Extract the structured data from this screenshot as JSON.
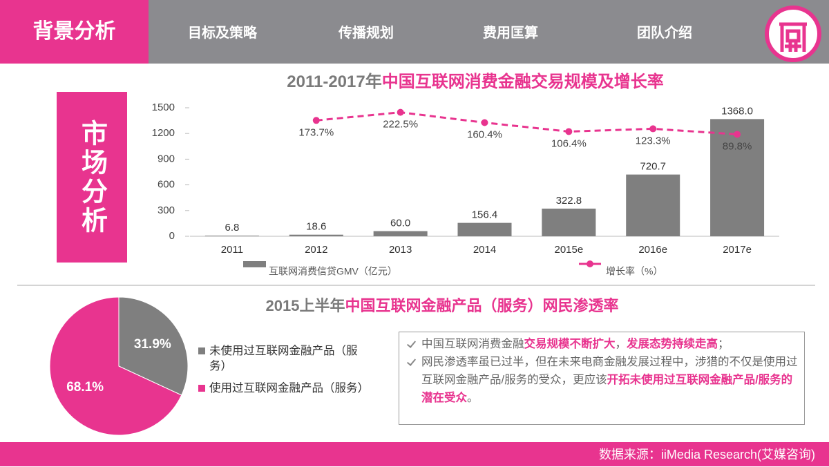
{
  "nav": {
    "active": "背景分析",
    "items": [
      "目标及策略",
      "传播规划",
      "费用匡算",
      "团队介绍"
    ]
  },
  "side_label": "市场分析",
  "chart_data": [
    {
      "type": "combo",
      "title": [
        "2011-2017年",
        "中国互联网消费金融交易规模及增长率"
      ],
      "categories": [
        "2011",
        "2012",
        "2013",
        "2014",
        "2015e",
        "2016e",
        "2017e"
      ],
      "series": [
        {
          "name": "互联网消费信贷GMV（亿元）",
          "type": "bar",
          "color": "#7f7f7f",
          "values": [
            6.8,
            18.6,
            60,
            156.4,
            322.8,
            720.7,
            1368
          ],
          "value_labels": [
            "6.8",
            "18.6",
            "60.0",
            "156.4",
            "322.8",
            "720.7",
            "1368.0"
          ]
        },
        {
          "name": "增长率（%）",
          "type": "line",
          "axis": "y2",
          "color": "#e8348f",
          "values": [
            null,
            173.7,
            222.5,
            160.4,
            106.4,
            123.3,
            89.8
          ],
          "value_labels": [
            null,
            "173.7%",
            "222.5%",
            "160.4%",
            "106.4%",
            "123.3%",
            "89.8%"
          ]
        }
      ],
      "ylim": [
        0,
        1500
      ],
      "yticks": [
        0,
        300,
        600,
        900,
        1200,
        1500
      ],
      "y2lim": [
        -525,
        250
      ]
    },
    {
      "type": "pie",
      "title": [
        "2015上半年",
        "中国互联网金融产品（服务）网民渗透率"
      ],
      "categories": [
        "未使用过互联网金融产品（服务）",
        "使用过互联网金融产品（服务）"
      ],
      "values": [
        31.9,
        68.1
      ],
      "value_labels": [
        "31.9%",
        "68.1%"
      ],
      "colors": [
        "#7f7f7f",
        "#e8348f"
      ]
    }
  ],
  "notes": [
    [
      {
        "text": "中国互联网消费金融"
      },
      {
        "text": "交易规模不断扩大",
        "em": true
      },
      {
        "text": "，"
      },
      {
        "text": "发展态势持续走高",
        "em": true
      },
      {
        "text": "；"
      }
    ],
    [
      {
        "text": "网民渗透率虽已过半，但在未来电商金融发展过程中，涉猎的不仅是使用过互联网金融产品/服务的受众，更应该"
      },
      {
        "text": "开拓未使用过互联网金融产品/服务的潜在受众",
        "em": true
      },
      {
        "text": "。"
      }
    ]
  ],
  "source": "数据来源：iiMedia Research(艾媒咨询)"
}
